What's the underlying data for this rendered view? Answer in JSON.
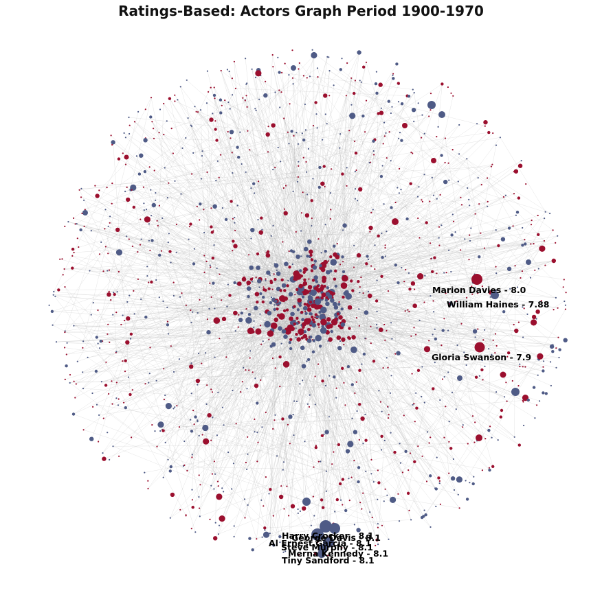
{
  "title": "Ratings-Based: Actors Graph Period 1900-1970",
  "colors": {
    "blue_node": "#4f5b86",
    "red_node": "#9b0f2e",
    "edge": "#b9b9b9",
    "background": "#ffffff"
  },
  "labeled_actors": [
    {
      "id": "marion-davies",
      "name": "Marion Davies",
      "rating": "8.0",
      "label": "Marion Davies - 8.0",
      "color_class": "red"
    },
    {
      "id": "william-haines",
      "name": "William Haines",
      "rating": "7.88",
      "label": "William Haines - 7.88",
      "color_class": "blue"
    },
    {
      "id": "gloria-swanson",
      "name": "Gloria Swanson",
      "rating": "7.9",
      "label": "Gloria Swanson - 7.9",
      "color_class": "red"
    },
    {
      "id": "harry-crocker",
      "name": "Harry Crocker",
      "rating": "8.1",
      "label": "Harry Crocker - 8.1",
      "color_class": "blue"
    },
    {
      "id": "george-davis",
      "name": "George Davis",
      "rating": "8.1",
      "label": "George Davis - 8.1",
      "color_class": "blue"
    },
    {
      "id": "al-ernest-garcia",
      "name": "Al Ernest Garcia",
      "rating": "8.1",
      "label": "Al Ernest Garcia - 8.1",
      "color_class": "blue"
    },
    {
      "id": "steve-murphy",
      "name": "Steve Murphy",
      "rating": "8.1",
      "label": "Steve Murphy - 8.1",
      "color_class": "blue"
    },
    {
      "id": "merna-kennedy",
      "name": "Merna Kennedy",
      "rating": "8.1",
      "label": "Merna Kennedy - 8.1",
      "color_class": "blue"
    },
    {
      "id": "tiny-sandford",
      "name": "Tiny Sandford",
      "rating": "8.1",
      "label": "Tiny Sandford - 8.1",
      "color_class": "blue"
    }
  ]
}
